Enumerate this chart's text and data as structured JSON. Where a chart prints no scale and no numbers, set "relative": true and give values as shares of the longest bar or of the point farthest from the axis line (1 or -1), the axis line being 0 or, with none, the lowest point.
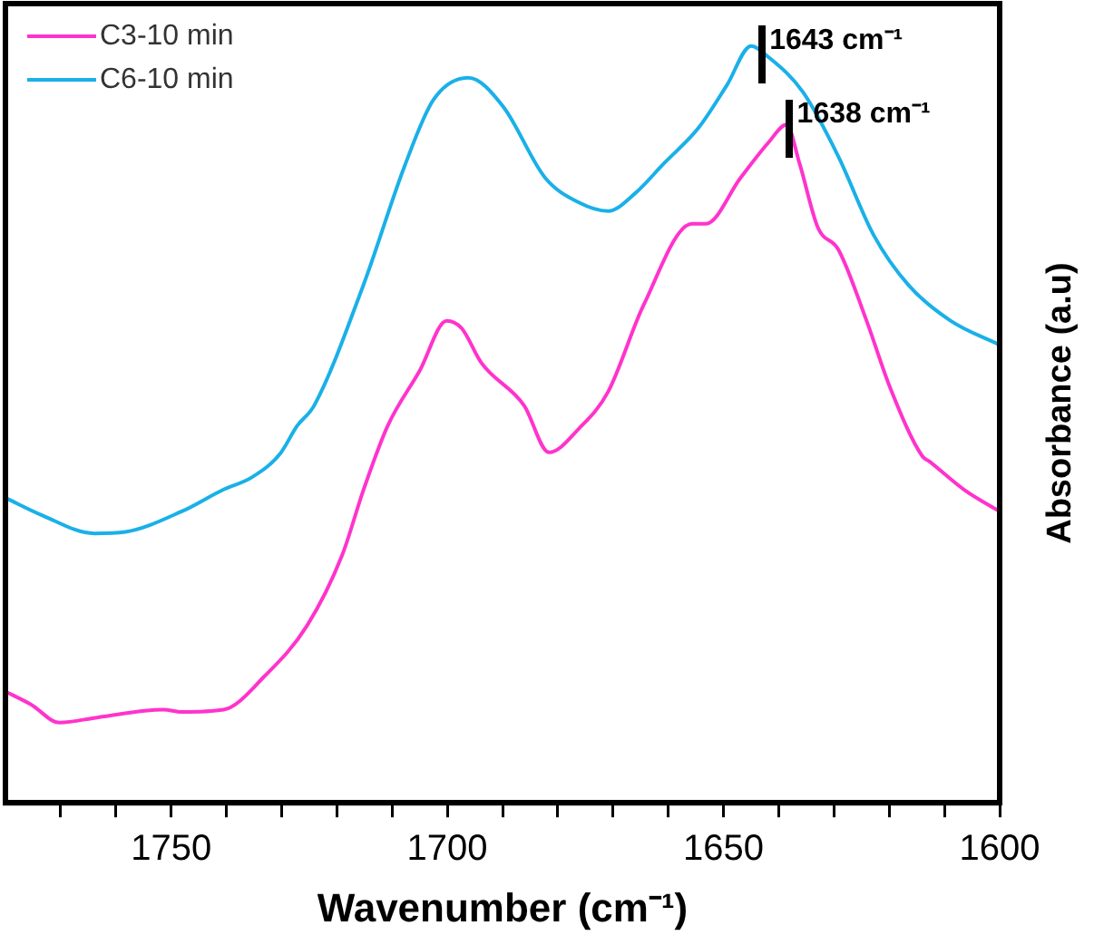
{
  "chart_data": {
    "type": "line",
    "xlabel": "Wavenumber (cm⁻¹)",
    "ylabel": "Absorbance (a.u)",
    "relative": true,
    "xlim": [
      1780,
      1600
    ],
    "xticks": [
      {
        "value": 1770,
        "label": null
      },
      {
        "value": 1760,
        "label": null
      },
      1750,
      {
        "value": 1740,
        "label": null
      },
      {
        "value": 1730,
        "label": null
      },
      {
        "value": 1720,
        "label": null
      },
      {
        "value": 1710,
        "label": null
      },
      1700,
      {
        "value": 1690,
        "label": null
      },
      {
        "value": 1680,
        "label": null
      },
      {
        "value": 1670,
        "label": null
      },
      {
        "value": 1660,
        "label": null
      },
      1650,
      {
        "value": 1640,
        "label": null
      },
      {
        "value": 1630,
        "label": null
      },
      {
        "value": 1620,
        "label": null
      },
      {
        "value": 1610,
        "label": null
      },
      1600
    ],
    "legend": "top left",
    "grid": false,
    "marker": "none",
    "line_style": "solid",
    "series": [
      {
        "name": "C3-10 min",
        "color": "#ff33cc",
        "x": [
          1780,
          1775.4,
          1770.2,
          1763.2,
          1751.4,
          1748.1,
          1740.5,
          1733,
          1725.4,
          1719,
          1715.2,
          1710.8,
          1705,
          1700.1,
          1697.4,
          1693.8,
          1686.1,
          1681.6,
          1676.1,
          1670.9,
          1664.5,
          1655.7,
          1653.2,
          1646.9,
          1641.8,
          1638.6,
          1636.2,
          1632.9,
          1629.2,
          1624.1,
          1619.8,
          1614,
          1612.7,
          1606.3,
          1600
        ],
        "values": [
          0.147,
          0.13,
          0.106,
          0.113,
          0.123,
          0.12,
          0.123,
          0.168,
          0.234,
          0.328,
          0.413,
          0.498,
          0.571,
          0.637,
          0.627,
          0.581,
          0.525,
          0.463,
          0.495,
          0.543,
          0.657,
          0.765,
          0.765,
          0.826,
          0.873,
          0.896,
          0.844,
          0.76,
          0.731,
          0.637,
          0.548,
          0.458,
          0.451,
          0.413,
          0.385
        ]
      },
      {
        "name": "C6-10 min",
        "color": "#1ab0e8",
        "x": [
          1780,
          1773.4,
          1763.9,
          1758.3,
          1748.1,
          1740.5,
          1735.4,
          1730.3,
          1727.2,
          1724.1,
          1715.2,
          1707.6,
          1702.5,
          1696.2,
          1689.9,
          1682.3,
          1676.1,
          1670.9,
          1665.9,
          1660.9,
          1654.5,
          1649.4,
          1645,
          1641.8,
          1635.6,
          1629.2,
          1622.8,
          1616.5,
          1608.9,
          1600
        ],
        "values": [
          0.403,
          0.38,
          0.356,
          0.358,
          0.385,
          0.414,
          0.43,
          0.461,
          0.498,
          0.525,
          0.684,
          0.844,
          0.929,
          0.958,
          0.92,
          0.826,
          0.793,
          0.782,
          0.806,
          0.844,
          0.892,
          0.948,
          1,
          0.985,
          0.939,
          0.854,
          0.75,
          0.684,
          0.637,
          0.605
        ]
      }
    ],
    "annotations": [
      {
        "text": "1643 cm⁻¹",
        "x": 1643,
        "y": 0.988
      },
      {
        "text": "1638 cm⁻¹",
        "x": 1638,
        "y": 0.89
      }
    ]
  }
}
